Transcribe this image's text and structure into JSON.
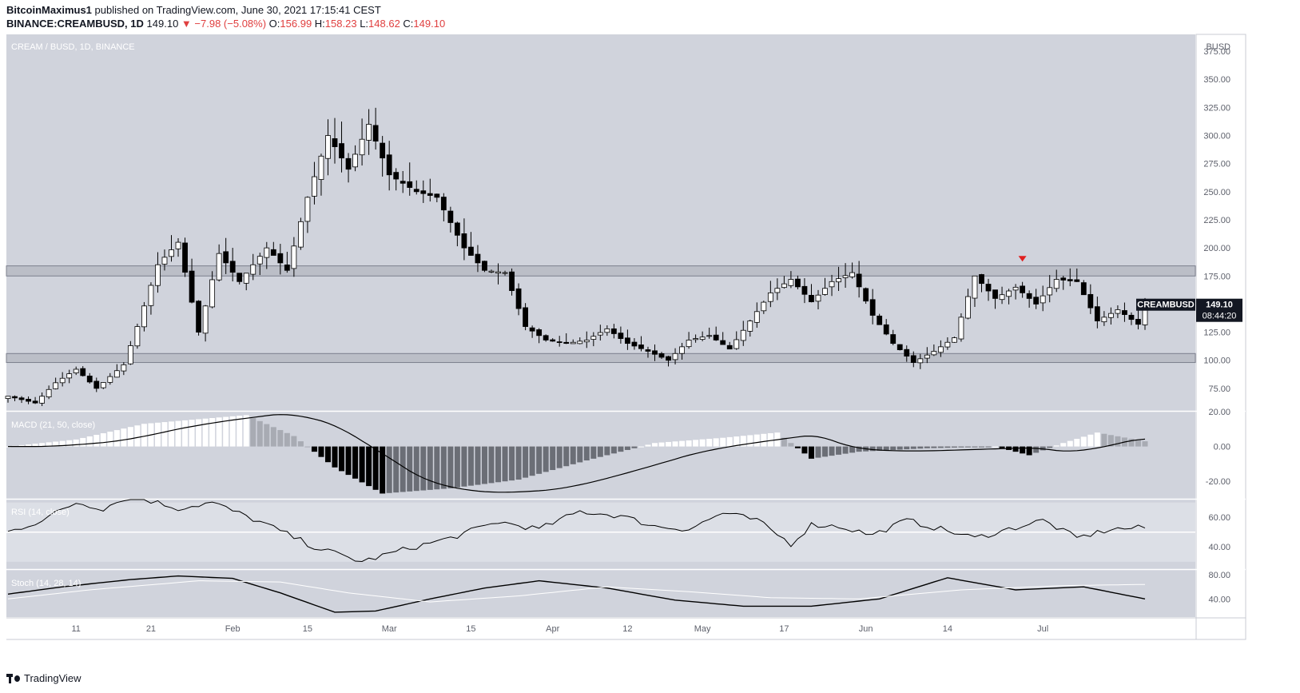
{
  "header": {
    "author": "BitcoinMaximus1",
    "published": "published on TradingView.com, June 30, 2021 17:15:41 CEST",
    "symbol": "BINANCE:CREAMBUSD, 1D",
    "last": "149.10",
    "change": "−7.98 (−5.08%)",
    "o_label": "O:",
    "o": "156.99",
    "h_label": "H:",
    "h": "158.23",
    "l_label": "L:",
    "l": "148.62",
    "c_label": "C:",
    "c": "149.10"
  },
  "footer": {
    "brand": "TradingView"
  },
  "chart_data": [
    {
      "type": "candlestick",
      "title": "CREAM / BUSD, 1D, BINANCE",
      "currency_label": "BUSD",
      "price_ticks": [
        "75.00",
        "100.00",
        "125.00",
        "150.00",
        "175.00",
        "200.00",
        "225.00",
        "250.00",
        "275.00",
        "300.00",
        "325.00",
        "350.00",
        "375.00"
      ],
      "x_ticks": [
        "11",
        "21",
        "Feb",
        "15",
        "Mar",
        "15",
        "Apr",
        "12",
        "May",
        "17",
        "Jun",
        "14",
        "Jul"
      ],
      "ylim": [
        55,
        390
      ],
      "symbol_label": "CREAMBUSD",
      "last_price_label": "149.10",
      "countdown_label": "08:44:20",
      "last_price": 149.1,
      "zones": [
        {
          "from": 175,
          "to": 184
        },
        {
          "from": 98,
          "to": 106
        }
      ],
      "marker": {
        "type": "down-arrow",
        "color": "#e02020",
        "date_index": 149,
        "price": 190
      },
      "anchors": [
        [
          0,
          68
        ],
        [
          4,
          62
        ],
        [
          7,
          80
        ],
        [
          10,
          92
        ],
        [
          13,
          75
        ],
        [
          17,
          96
        ],
        [
          19,
          130
        ],
        [
          22,
          185
        ],
        [
          25,
          205
        ],
        [
          28,
          125
        ],
        [
          31,
          195
        ],
        [
          34,
          170
        ],
        [
          38,
          200
        ],
        [
          41,
          180
        ],
        [
          44,
          245
        ],
        [
          47,
          300
        ],
        [
          50,
          270
        ],
        [
          53,
          310
        ],
        [
          56,
          265
        ],
        [
          60,
          250
        ],
        [
          63,
          245
        ],
        [
          67,
          200
        ],
        [
          70,
          180
        ],
        [
          73,
          178
        ],
        [
          76,
          130
        ],
        [
          79,
          118
        ],
        [
          82,
          115
        ],
        [
          85,
          118
        ],
        [
          88,
          128
        ],
        [
          91,
          115
        ],
        [
          94,
          108
        ],
        [
          97,
          100
        ],
        [
          100,
          118
        ],
        [
          103,
          122
        ],
        [
          106,
          110
        ],
        [
          109,
          135
        ],
        [
          112,
          160
        ],
        [
          115,
          172
        ],
        [
          118,
          152
        ],
        [
          121,
          170
        ],
        [
          124,
          178
        ],
        [
          127,
          140
        ],
        [
          130,
          115
        ],
        [
          133,
          98
        ],
        [
          136,
          108
        ],
        [
          139,
          120
        ],
        [
          142,
          175
        ],
        [
          145,
          155
        ],
        [
          148,
          165
        ],
        [
          151,
          150
        ],
        [
          154,
          172
        ],
        [
          157,
          170
        ],
        [
          160,
          135
        ],
        [
          163,
          145
        ],
        [
          166,
          132
        ],
        [
          167,
          149.1
        ]
      ],
      "series_count": 168
    },
    {
      "type": "bar+line",
      "title": "MACD (21, 50, close)",
      "y_ticks": [
        "20.00",
        "0.00",
        "-20.00"
      ],
      "ylim": [
        -30,
        20
      ],
      "anchors": [
        [
          0,
          0
        ],
        [
          10,
          4
        ],
        [
          20,
          13
        ],
        [
          35,
          18
        ],
        [
          42,
          6
        ],
        [
          48,
          -12
        ],
        [
          55,
          -27
        ],
        [
          65,
          -24
        ],
        [
          75,
          -19
        ],
        [
          85,
          -8
        ],
        [
          95,
          2
        ],
        [
          105,
          5
        ],
        [
          113,
          8
        ],
        [
          118,
          -7
        ],
        [
          125,
          -3
        ],
        [
          135,
          -1
        ],
        [
          145,
          0
        ],
        [
          150,
          -5
        ],
        [
          155,
          2
        ],
        [
          160,
          8
        ],
        [
          167,
          3
        ]
      ]
    },
    {
      "type": "line",
      "title": "RSI (14, close)",
      "y_ticks": [
        "60.00",
        "40.00"
      ],
      "ylim": [
        25,
        72
      ],
      "level": 50,
      "anchors": [
        [
          0,
          50
        ],
        [
          5,
          58
        ],
        [
          10,
          70
        ],
        [
          14,
          66
        ],
        [
          18,
          75
        ],
        [
          25,
          66
        ],
        [
          30,
          70
        ],
        [
          38,
          55
        ],
        [
          45,
          40
        ],
        [
          52,
          30
        ],
        [
          58,
          38
        ],
        [
          65,
          46
        ],
        [
          72,
          57
        ],
        [
          78,
          52
        ],
        [
          84,
          64
        ],
        [
          90,
          61
        ],
        [
          95,
          54
        ],
        [
          100,
          52
        ],
        [
          105,
          63
        ],
        [
          110,
          58
        ],
        [
          115,
          42
        ],
        [
          118,
          55
        ],
        [
          122,
          54
        ],
        [
          127,
          48
        ],
        [
          132,
          58
        ],
        [
          137,
          52
        ],
        [
          142,
          46
        ],
        [
          147,
          52
        ],
        [
          152,
          58
        ],
        [
          157,
          46
        ],
        [
          162,
          52
        ],
        [
          167,
          53
        ]
      ]
    },
    {
      "type": "line",
      "title": "Stoch (14, 28, 14)",
      "y_ticks": [
        "80.00",
        "40.00"
      ],
      "ylim": [
        10,
        88
      ],
      "series": [
        {
          "values_anchors": [
            [
              0,
              48
            ],
            [
              8,
              60
            ],
            [
              18,
              72
            ],
            [
              25,
              78
            ],
            [
              33,
              74
            ],
            [
              40,
              50
            ],
            [
              48,
              18
            ],
            [
              54,
              20
            ],
            [
              62,
              40
            ],
            [
              70,
              58
            ],
            [
              78,
              70
            ],
            [
              88,
              58
            ],
            [
              98,
              38
            ],
            [
              108,
              28
            ],
            [
              118,
              28
            ],
            [
              128,
              40
            ],
            [
              138,
              75
            ],
            [
              148,
              55
            ],
            [
              158,
              60
            ],
            [
              167,
              40
            ]
          ]
        },
        {
          "values_anchors": [
            [
              0,
              40
            ],
            [
              12,
              55
            ],
            [
              28,
              70
            ],
            [
              40,
              68
            ],
            [
              50,
              50
            ],
            [
              62,
              35
            ],
            [
              75,
              45
            ],
            [
              88,
              60
            ],
            [
              100,
              52
            ],
            [
              112,
              42
            ],
            [
              125,
              40
            ],
            [
              140,
              55
            ],
            [
              155,
              62
            ],
            [
              167,
              64
            ]
          ]
        }
      ]
    }
  ]
}
